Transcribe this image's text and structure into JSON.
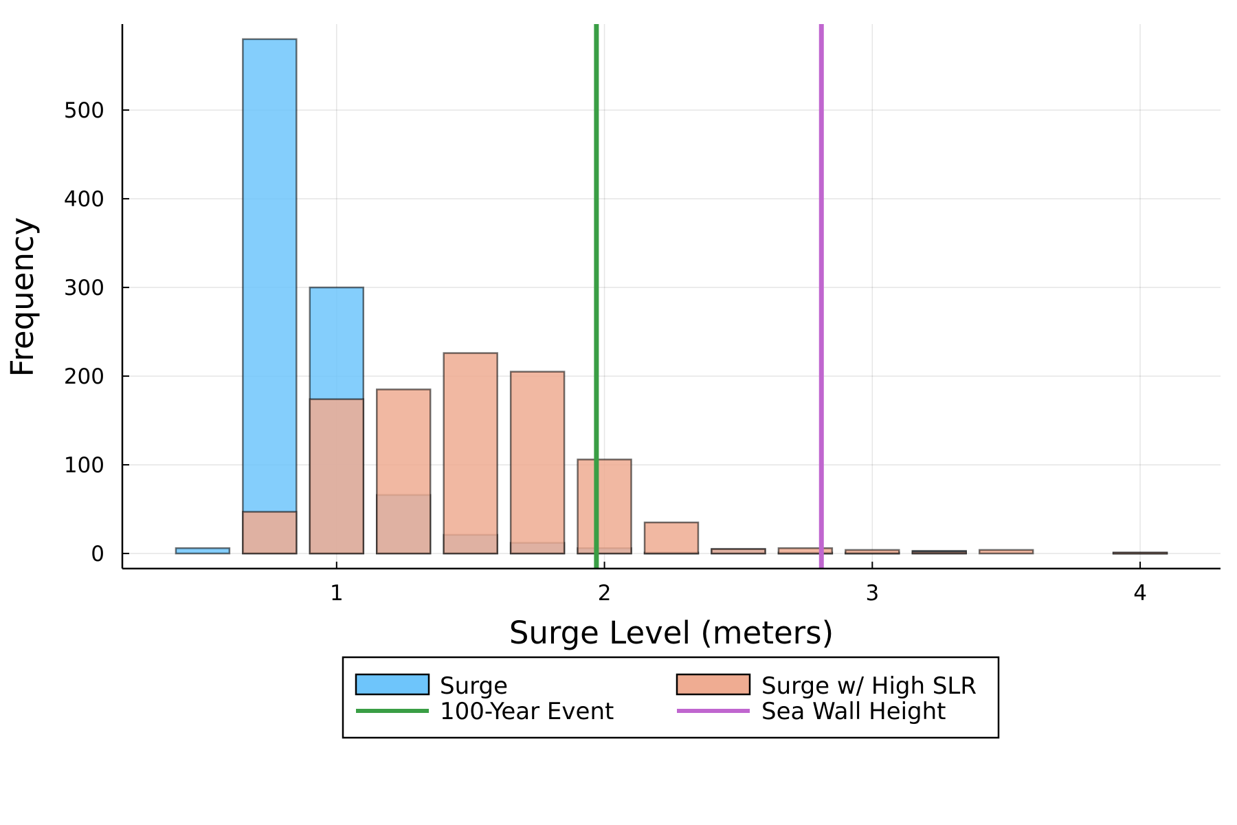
{
  "chart_data": {
    "type": "bar",
    "title": "",
    "xlabel": "Surge Level (meters)",
    "ylabel": "Frequency",
    "xlim": [
      0.2,
      4.3
    ],
    "ylim": [
      -17,
      597
    ],
    "xticks": [
      1,
      2,
      3,
      4
    ],
    "xtick_labels": [
      "1",
      "2",
      "3",
      "4"
    ],
    "yticks": [
      0,
      100,
      200,
      300,
      400,
      500
    ],
    "ytick_labels": [
      "0",
      "100",
      "200",
      "300",
      "400",
      "500"
    ],
    "grid": true,
    "legend_position": "bottom (outside)",
    "bin_edges": [
      0.375,
      0.625,
      0.875,
      1.125,
      1.375,
      1.625,
      1.875,
      2.125,
      2.375,
      2.625,
      2.875,
      3.125,
      3.375,
      3.625,
      3.875,
      4.125
    ],
    "bar_width_fraction": 0.8,
    "series": [
      {
        "name": "Surge",
        "color": "#6ec5fb",
        "values": [
          6,
          580,
          300,
          66,
          21,
          12,
          6,
          1,
          5,
          1,
          1,
          3,
          0,
          0,
          1
        ]
      },
      {
        "name": "Surge w/ High SLR",
        "color": "#efac92",
        "values": [
          0,
          47,
          174,
          185,
          226,
          205,
          106,
          35,
          5,
          6,
          4,
          2,
          4,
          0,
          1
        ]
      }
    ],
    "vlines": [
      {
        "name": "100-Year Event",
        "x": 1.97,
        "color": "#3a9e45"
      },
      {
        "name": "Sea Wall Height",
        "x": 2.81,
        "color": "#c066cf"
      }
    ]
  }
}
